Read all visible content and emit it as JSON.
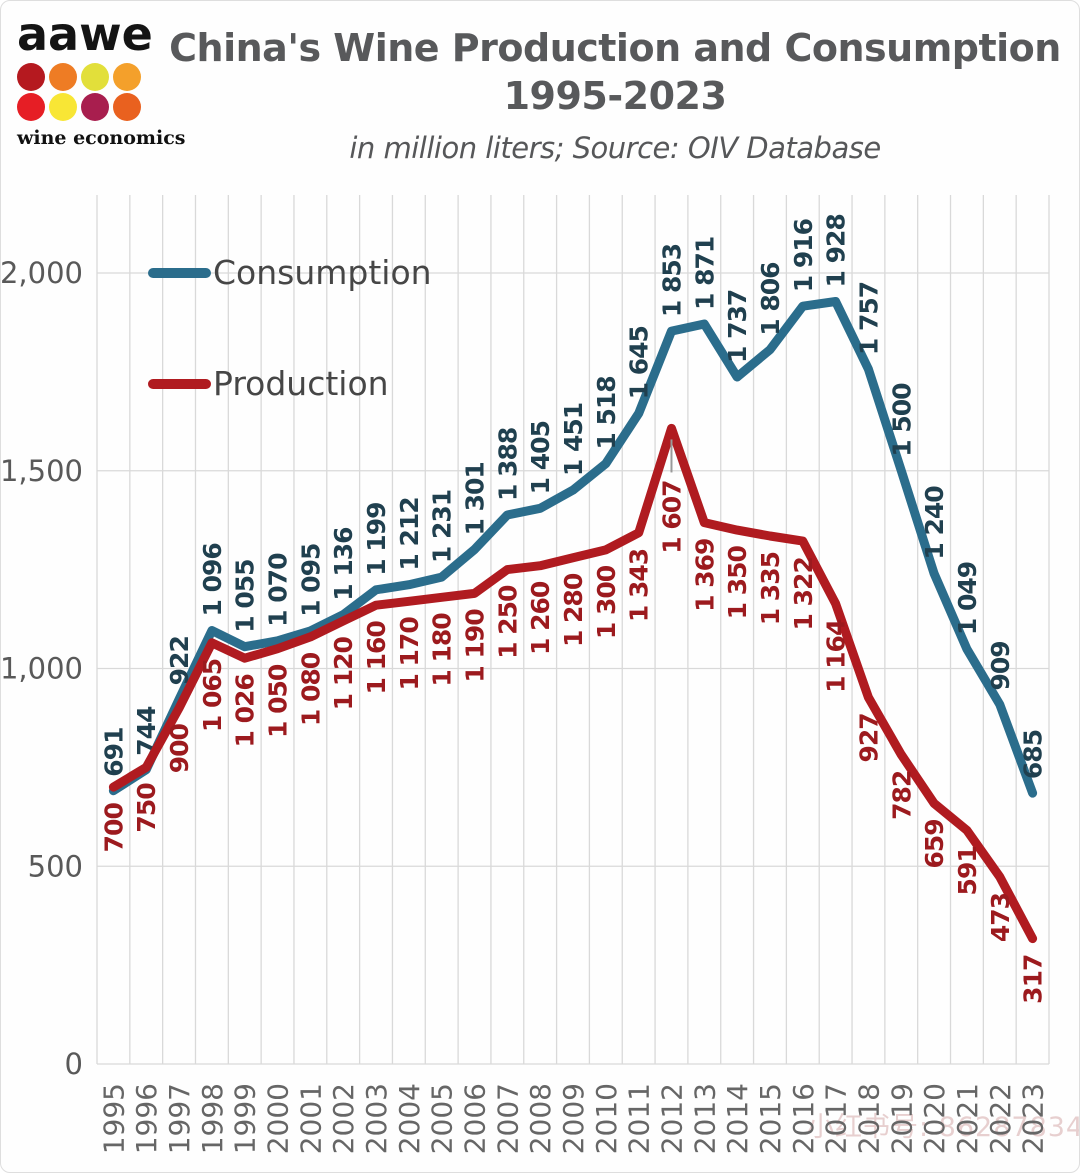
{
  "logo": {
    "brand": "aawe",
    "tagline": "wine economics",
    "dot_colors": [
      "#b5191f",
      "#ee7c24",
      "#e2df3a",
      "#f4a02b",
      "#e61e25",
      "#f8e635",
      "#a81e4e",
      "#e9611f"
    ]
  },
  "header": {
    "title_line1": "China's Wine Production and Consumption",
    "title_line2": "1995-2023",
    "subtitle": "in million liters; Source: OIV Database"
  },
  "watermark": "小红书号: 86287834",
  "chart_data": {
    "type": "line",
    "title": "China's Wine Production and Consumption 1995-2023",
    "subtitle": "in million liters; Source: OIV Database",
    "xlabel": "",
    "ylabel": "",
    "x": [
      "1995",
      "1996",
      "1997",
      "1998",
      "1999",
      "2000",
      "2001",
      "2002",
      "2003",
      "2004",
      "2005",
      "2006",
      "2007",
      "2008",
      "2009",
      "2010",
      "2011",
      "2012",
      "2013",
      "2014",
      "2015",
      "2016",
      "2017",
      "2018",
      "2019",
      "2020",
      "2021",
      "2022",
      "2023"
    ],
    "series": [
      {
        "name": "Consumption",
        "color": "#2b6d8c",
        "label_color": "#20404f",
        "label_side": "above",
        "values": [
          691,
          744,
          922,
          1096,
          1055,
          1070,
          1095,
          1136,
          1199,
          1212,
          1231,
          1301,
          1388,
          1405,
          1451,
          1518,
          1645,
          1853,
          1871,
          1737,
          1806,
          1916,
          1928,
          1757,
          1500,
          1240,
          1049,
          909,
          685
        ]
      },
      {
        "name": "Production",
        "color": "#b01b20",
        "label_color": "#9c1a1e",
        "label_side": "below",
        "values": [
          700,
          750,
          900,
          1065,
          1026,
          1050,
          1080,
          1120,
          1160,
          1170,
          1180,
          1190,
          1250,
          1260,
          1280,
          1300,
          1343,
          1607,
          1369,
          1350,
          1335,
          1322,
          1164,
          927,
          782,
          659,
          591,
          473,
          317
        ]
      }
    ],
    "callout_point": {
      "series": "Production",
      "x": "2012",
      "value": 1607
    },
    "ylim": [
      0,
      2200
    ],
    "yticks": [
      0,
      500,
      1000,
      1500,
      2000
    ],
    "ytick_labels": [
      "0",
      "500",
      "1,000",
      "1,500",
      "2,000"
    ],
    "grid": true,
    "grid_color": "#d9d9d9",
    "axis_text_color": "#595959",
    "legend_position": "top-left",
    "number_format": "space-thousands"
  }
}
